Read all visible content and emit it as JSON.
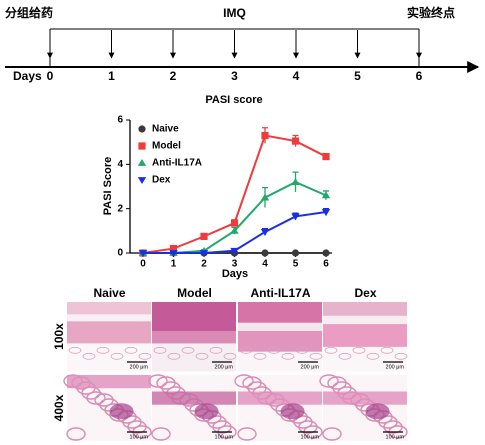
{
  "timeline": {
    "events": [
      {
        "label": "分组给药",
        "day": 0
      },
      {
        "label": "IMQ",
        "day": 3
      },
      {
        "label": "实验终点",
        "day": 6
      }
    ],
    "axis_label": "Days",
    "days": [
      0,
      1,
      2,
      3,
      4,
      5,
      6
    ]
  },
  "chart_data": {
    "type": "line",
    "title": "PASI score",
    "x_label": "Days",
    "y_label": "PASI Score",
    "x": [
      0,
      1,
      2,
      3,
      4,
      5,
      6
    ],
    "xlim": [
      0,
      6
    ],
    "xticks": [
      0,
      1,
      2,
      3,
      4,
      5,
      6
    ],
    "ylim": [
      0,
      6
    ],
    "yticks": [
      0,
      2,
      4,
      6
    ],
    "legend": "upper left",
    "series": [
      {
        "name": "Naive",
        "color": "#3a3a3a",
        "marker": "circle",
        "values": [
          0,
          0,
          0,
          0,
          0,
          0,
          0
        ]
      },
      {
        "name": "Model",
        "color": "#ee3b3b",
        "marker": "square",
        "values": [
          0,
          0.2,
          0.75,
          1.35,
          5.3,
          5.05,
          4.35
        ],
        "errors": [
          0,
          0.05,
          0.05,
          0.15,
          0.35,
          0.25,
          0.1
        ]
      },
      {
        "name": "Anti-IL17A",
        "color": "#22a86a",
        "marker": "triangle-up",
        "values": [
          0,
          0,
          0.1,
          1.0,
          2.5,
          3.2,
          2.6
        ],
        "errors": [
          0,
          0,
          0.05,
          0.15,
          0.45,
          0.45,
          0.2
        ]
      },
      {
        "name": "Dex",
        "color": "#1a2ee6",
        "marker": "triangle-down",
        "values": [
          0,
          0,
          0,
          0.1,
          0.95,
          1.65,
          1.85
        ],
        "errors": [
          0,
          0,
          0,
          0.05,
          0.15,
          0.15,
          0.15
        ]
      }
    ]
  },
  "histology": {
    "columns": [
      "Naive",
      "Model",
      "Anti-IL17A",
      "Dex"
    ],
    "rows": [
      "100x",
      "400x"
    ],
    "scale_labels": [
      "200 μm",
      "100 μm"
    ]
  }
}
